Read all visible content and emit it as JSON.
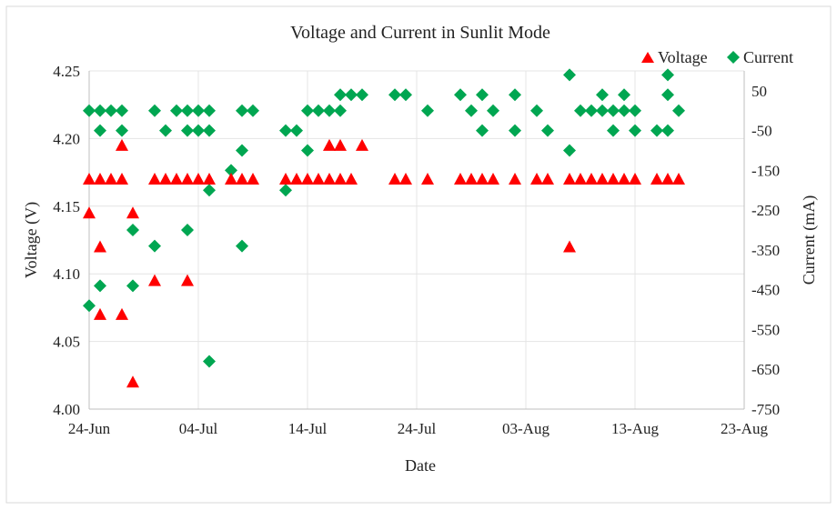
{
  "chart_data": {
    "type": "scatter",
    "title": "Voltage and Current in Sunlit Mode",
    "xlabel": "Date",
    "ylabel": "Voltage (V)",
    "y2label": "Current (mA)",
    "x_unit": "days since 24-Jun",
    "xlim": [
      0,
      60
    ],
    "ylim": [
      4.0,
      4.25
    ],
    "y2lim": [
      -750,
      100
    ],
    "x_ticks": [
      {
        "v": 0,
        "label": "24-Jun"
      },
      {
        "v": 10,
        "label": "04-Jul"
      },
      {
        "v": 20,
        "label": "14-Jul"
      },
      {
        "v": 30,
        "label": "24-Jul"
      },
      {
        "v": 40,
        "label": "03-Aug"
      },
      {
        "v": 50,
        "label": "13-Aug"
      },
      {
        "v": 60,
        "label": "23-Aug"
      }
    ],
    "y_ticks": [
      {
        "v": 4.0,
        "label": "4.00"
      },
      {
        "v": 4.05,
        "label": "4.05"
      },
      {
        "v": 4.1,
        "label": "4.10"
      },
      {
        "v": 4.15,
        "label": "4.15"
      },
      {
        "v": 4.2,
        "label": "4.20"
      },
      {
        "v": 4.25,
        "label": "4.25"
      }
    ],
    "y2_ticks": [
      {
        "v": 50,
        "label": "50"
      },
      {
        "v": -50,
        "label": "-50"
      },
      {
        "v": -150,
        "label": "-150"
      },
      {
        "v": -250,
        "label": "-250"
      },
      {
        "v": -350,
        "label": "-350"
      },
      {
        "v": -450,
        "label": "-450"
      },
      {
        "v": -550,
        "label": "-550"
      },
      {
        "v": -650,
        "label": "-650"
      },
      {
        "v": -750,
        "label": "-750"
      }
    ],
    "grid": true,
    "legend_position": "top-right",
    "series": [
      {
        "name": "Voltage",
        "axis": "left",
        "marker": "triangle",
        "color": "#ff0000",
        "points": [
          [
            0,
            4.17
          ],
          [
            0,
            4.145
          ],
          [
            1,
            4.17
          ],
          [
            1,
            4.12
          ],
          [
            1,
            4.07
          ],
          [
            2,
            4.17
          ],
          [
            3,
            4.195
          ],
          [
            3,
            4.17
          ],
          [
            3,
            4.07
          ],
          [
            4,
            4.145
          ],
          [
            4,
            4.02
          ],
          [
            6,
            4.17
          ],
          [
            6,
            4.095
          ],
          [
            7,
            4.17
          ],
          [
            8,
            4.17
          ],
          [
            9,
            4.17
          ],
          [
            9,
            4.095
          ],
          [
            10,
            4.17
          ],
          [
            11,
            4.17
          ],
          [
            13,
            4.17
          ],
          [
            14,
            4.17
          ],
          [
            15,
            4.17
          ],
          [
            18,
            4.17
          ],
          [
            19,
            4.17
          ],
          [
            20,
            4.17
          ],
          [
            21,
            4.17
          ],
          [
            22,
            4.195
          ],
          [
            22,
            4.17
          ],
          [
            23,
            4.195
          ],
          [
            23,
            4.17
          ],
          [
            24,
            4.17
          ],
          [
            25,
            4.195
          ],
          [
            28,
            4.17
          ],
          [
            29,
            4.17
          ],
          [
            31,
            4.17
          ],
          [
            34,
            4.17
          ],
          [
            35,
            4.17
          ],
          [
            36,
            4.17
          ],
          [
            37,
            4.17
          ],
          [
            39,
            4.17
          ],
          [
            41,
            4.17
          ],
          [
            42,
            4.17
          ],
          [
            44,
            4.17
          ],
          [
            44,
            4.12
          ],
          [
            45,
            4.17
          ],
          [
            46,
            4.17
          ],
          [
            47,
            4.17
          ],
          [
            48,
            4.17
          ],
          [
            49,
            4.17
          ],
          [
            50,
            4.17
          ],
          [
            52,
            4.17
          ],
          [
            53,
            4.17
          ],
          [
            54,
            4.17
          ]
        ]
      },
      {
        "name": "Current",
        "axis": "right",
        "marker": "diamond",
        "color": "#00a651",
        "points": [
          [
            0,
            0
          ],
          [
            0,
            -490
          ],
          [
            1,
            0
          ],
          [
            1,
            -50
          ],
          [
            1,
            -440
          ],
          [
            2,
            0
          ],
          [
            3,
            0
          ],
          [
            3,
            -50
          ],
          [
            4,
            -300
          ],
          [
            4,
            -440
          ],
          [
            6,
            0
          ],
          [
            6,
            -340
          ],
          [
            7,
            -50
          ],
          [
            8,
            0
          ],
          [
            9,
            0
          ],
          [
            9,
            -50
          ],
          [
            9,
            -300
          ],
          [
            10,
            0
          ],
          [
            10,
            -50
          ],
          [
            11,
            0
          ],
          [
            11,
            -50
          ],
          [
            11,
            -200
          ],
          [
            11,
            -630
          ],
          [
            13,
            -150
          ],
          [
            14,
            0
          ],
          [
            14,
            -100
          ],
          [
            14,
            -340
          ],
          [
            15,
            0
          ],
          [
            18,
            -50
          ],
          [
            18,
            -200
          ],
          [
            19,
            -50
          ],
          [
            20,
            0
          ],
          [
            20,
            -100
          ],
          [
            21,
            0
          ],
          [
            22,
            0
          ],
          [
            23,
            0
          ],
          [
            23,
            40
          ],
          [
            24,
            40
          ],
          [
            25,
            40
          ],
          [
            28,
            40
          ],
          [
            29,
            40
          ],
          [
            31,
            0
          ],
          [
            34,
            40
          ],
          [
            35,
            0
          ],
          [
            36,
            40
          ],
          [
            36,
            -50
          ],
          [
            37,
            0
          ],
          [
            39,
            40
          ],
          [
            39,
            -50
          ],
          [
            41,
            0
          ],
          [
            42,
            -50
          ],
          [
            44,
            90
          ],
          [
            44,
            -100
          ],
          [
            45,
            0
          ],
          [
            46,
            0
          ],
          [
            47,
            0
          ],
          [
            47,
            40
          ],
          [
            48,
            0
          ],
          [
            48,
            -50
          ],
          [
            49,
            0
          ],
          [
            49,
            40
          ],
          [
            50,
            0
          ],
          [
            50,
            -50
          ],
          [
            52,
            -50
          ],
          [
            53,
            90
          ],
          [
            53,
            40
          ],
          [
            53,
            -50
          ],
          [
            54,
            0
          ]
        ]
      }
    ]
  }
}
